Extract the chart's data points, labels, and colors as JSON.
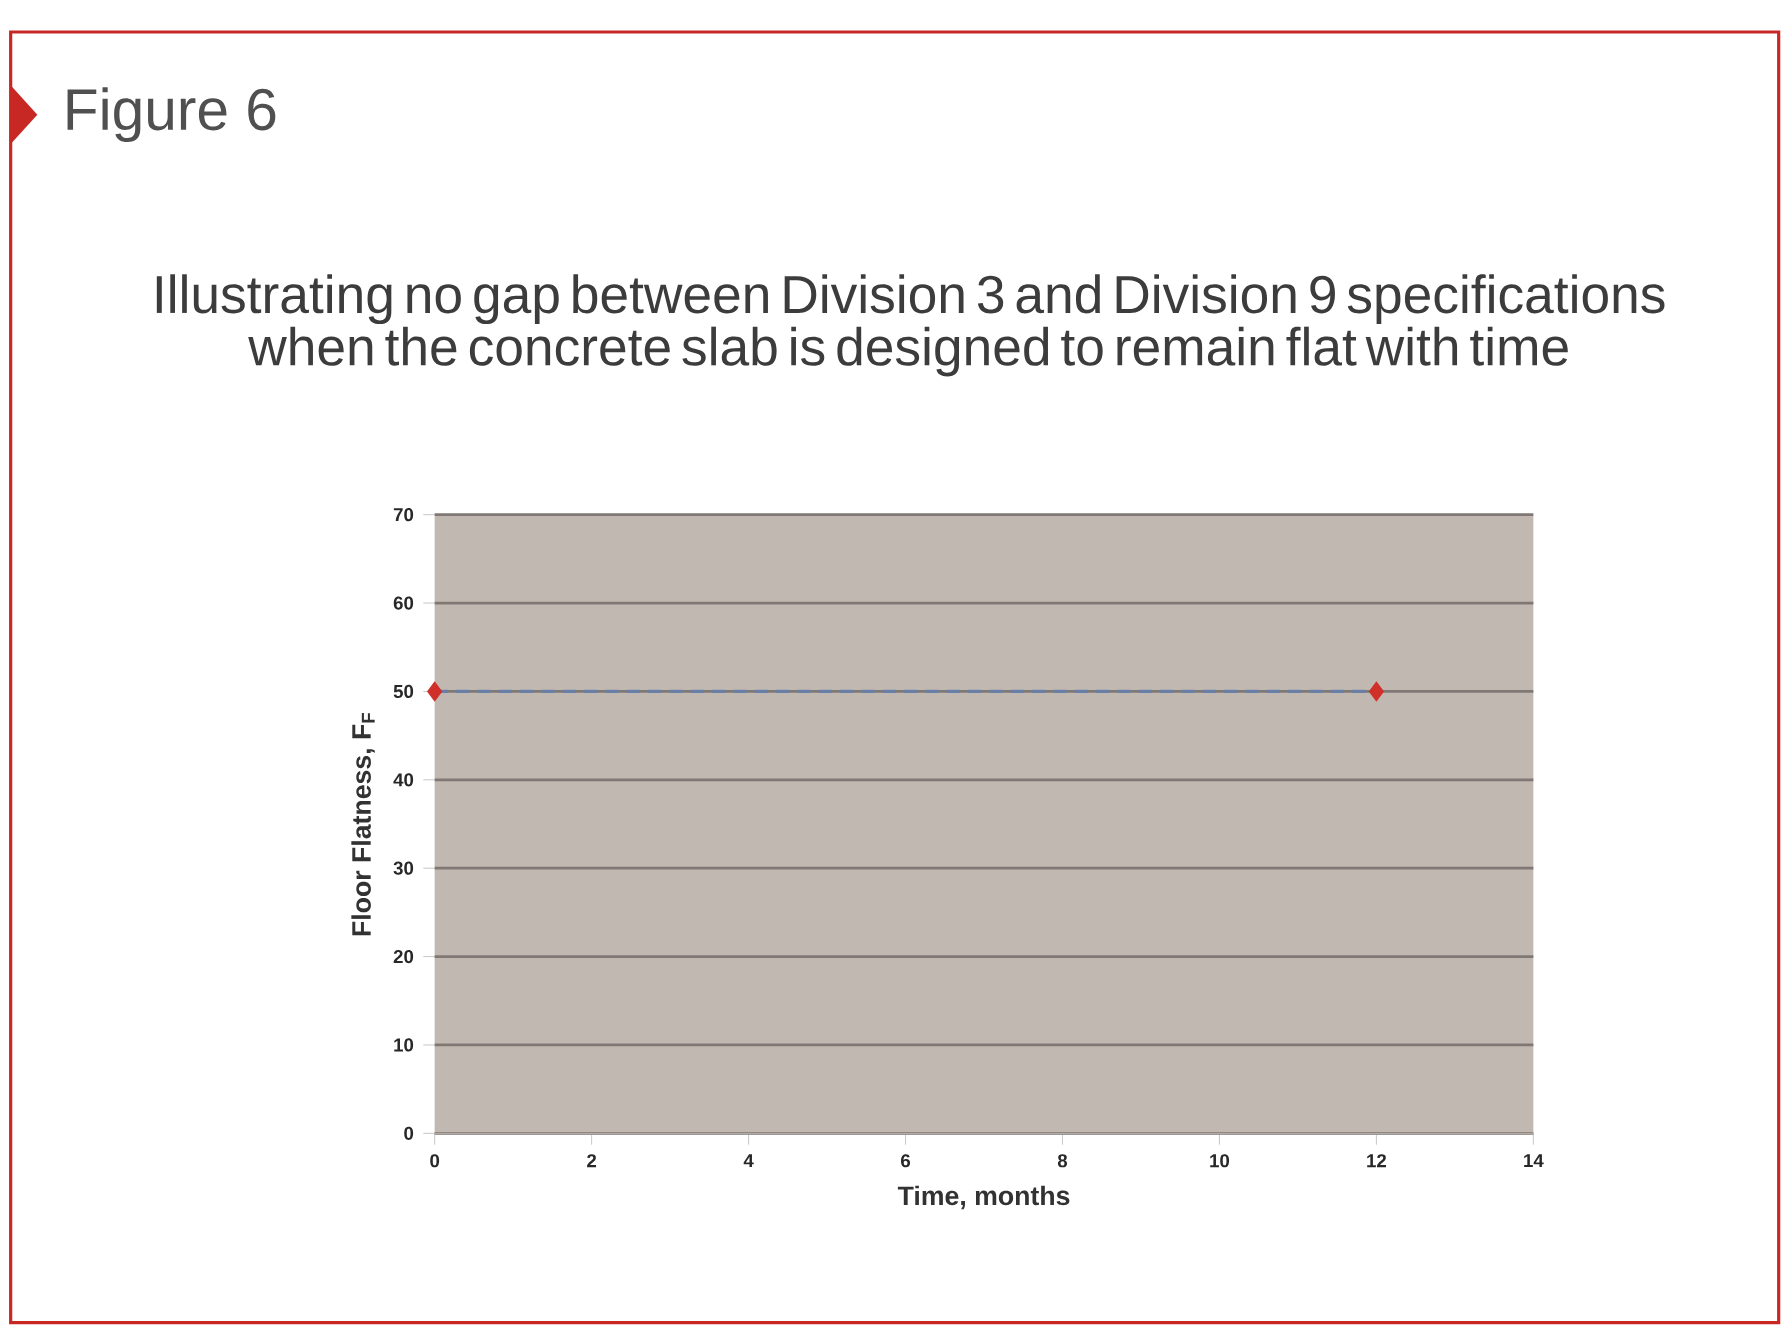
{
  "chart_data": {
    "type": "line",
    "title": "Figure 6",
    "subtitle": "Illustrating no gap between Division 3 and Division 9 specifications when the concrete slab is designed to remain flat with time",
    "xlabel": "Time, months",
    "ylabel": "Floor Flatness, F$_{F}$",
    "x": [
      0,
      12
    ],
    "xlim": [
      0,
      14
    ],
    "xticks": [
      0,
      2,
      4,
      6,
      8,
      10,
      12,
      14
    ],
    "ylim": [
      0,
      70
    ],
    "yticks": [
      0,
      10,
      20,
      30,
      40,
      50,
      60,
      70
    ],
    "grid": "y",
    "series": [
      {
        "color": "#6a7fa6",
        "line_style": "dashed",
        "marker": "none",
        "values": [
          50,
          50
        ]
      },
      {
        "type": "scatter",
        "color": "#d0302a",
        "marker": "diamond",
        "values": [
          50,
          50
        ]
      }
    ]
  }
}
